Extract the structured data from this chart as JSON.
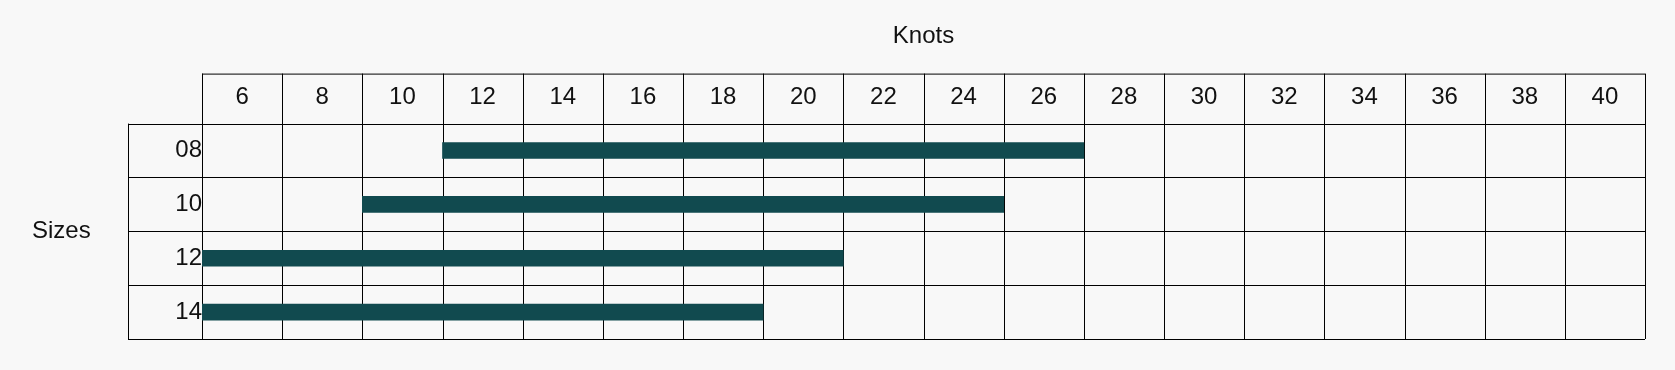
{
  "chart_data": {
    "type": "bar",
    "orientation": "horizontal",
    "xlabel": "Knots",
    "ylabel": "Sizes",
    "categories": [
      "08",
      "10",
      "12",
      "14"
    ],
    "base": [
      11,
      9,
      5,
      5
    ],
    "values": [
      16,
      16,
      16,
      14
    ],
    "color": "#114a4f",
    "xlim": [
      5,
      41
    ],
    "xticks": [
      6,
      8,
      10,
      12,
      14,
      16,
      18,
      20,
      22,
      24,
      26,
      28,
      30,
      32,
      34,
      36,
      38,
      40
    ],
    "grid": true
  }
}
